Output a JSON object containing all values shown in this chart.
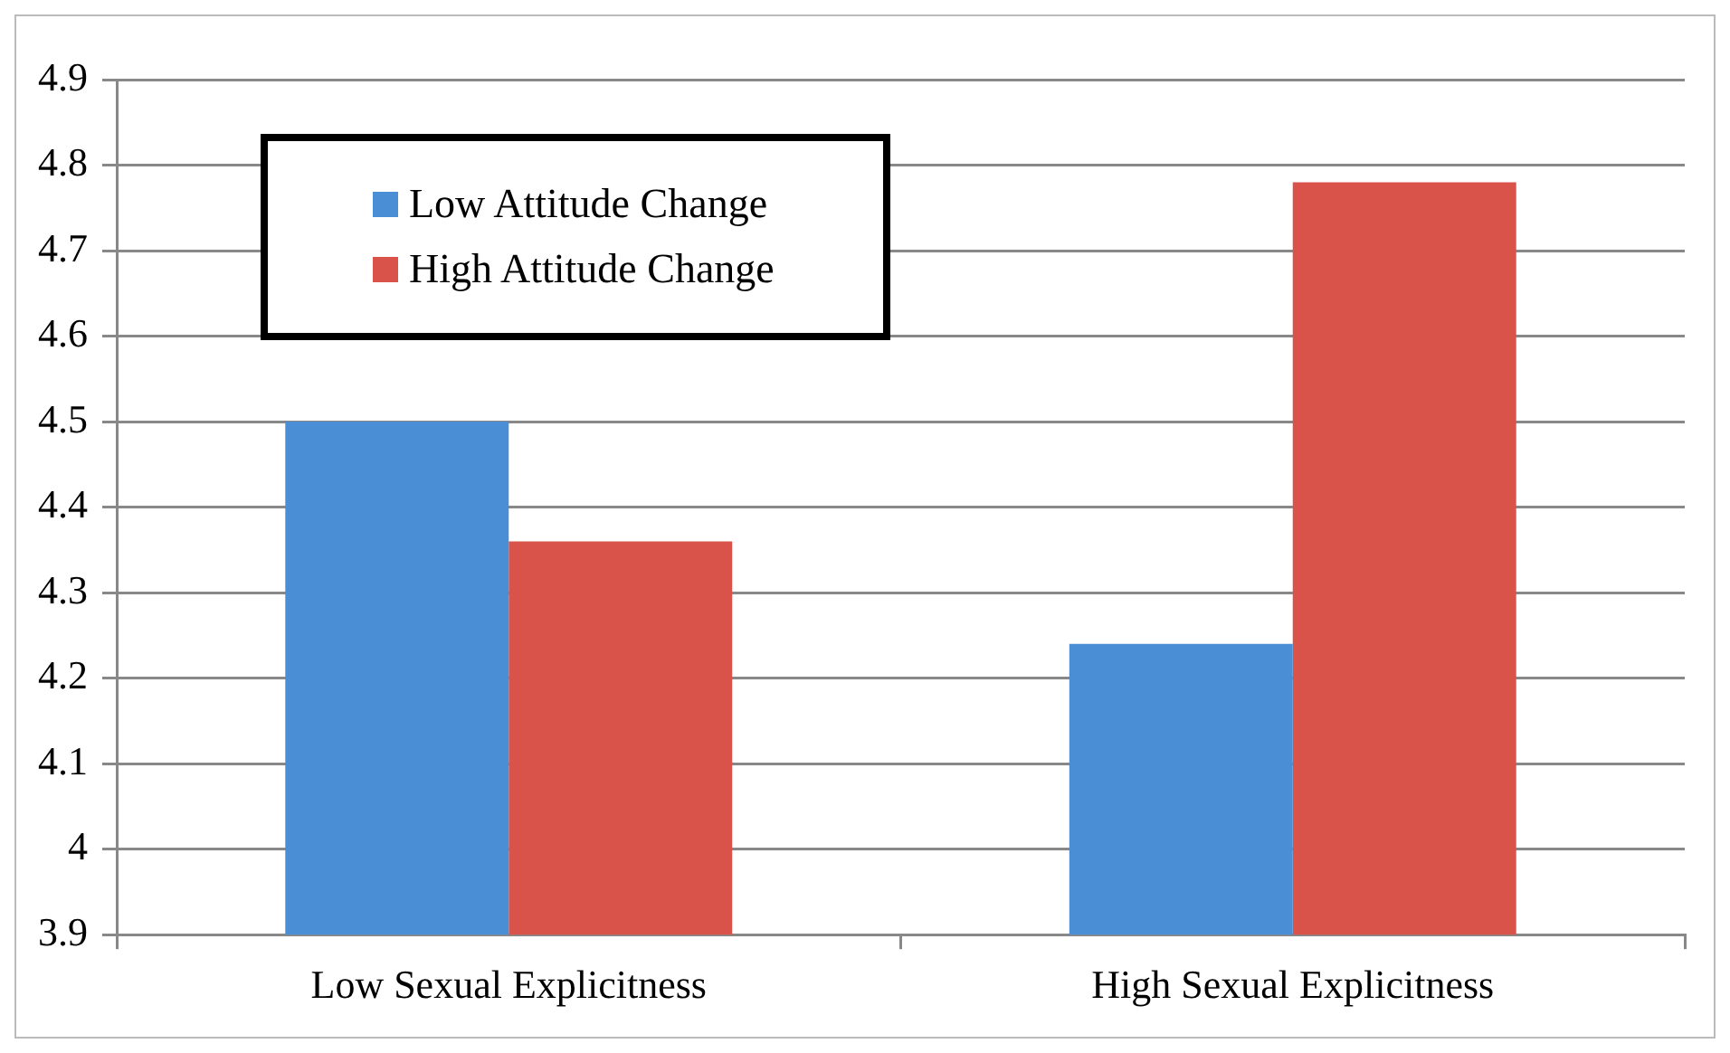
{
  "chart_data": {
    "type": "bar",
    "categories": [
      "Low Sexual Explicitness",
      "High Sexual Explicitness"
    ],
    "series": [
      {
        "name": "Low Attitude Change",
        "color": "#4a8fd6",
        "values": [
          4.5,
          4.24
        ]
      },
      {
        "name": "High Attitude Change",
        "color": "#d9534a",
        "values": [
          4.36,
          4.78
        ]
      }
    ],
    "ylim": [
      3.9,
      4.9
    ],
    "yticks": [
      3.9,
      4,
      4.1,
      4.2,
      4.3,
      4.4,
      4.5,
      4.6,
      4.7,
      4.8,
      4.9
    ],
    "grid": "y",
    "legend": "top left"
  }
}
